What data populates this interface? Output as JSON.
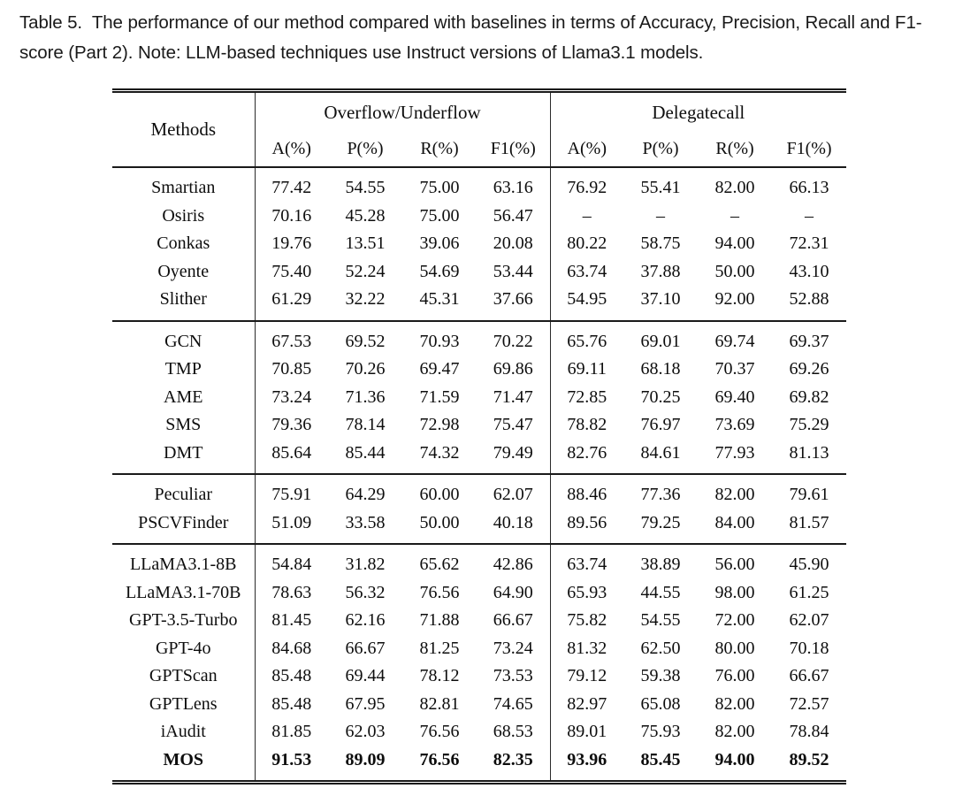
{
  "caption": "Table 5.  The performance of our method compared with baselines in terms of Accuracy, Precision, Recall and F1-score (Part 2). Note: LLM-based techniques use Instruct versions of Llama3.1 models.",
  "table": {
    "header": {
      "methods_label": "Methods",
      "group_labels": [
        "Overflow/Underflow",
        "Delegatecall"
      ],
      "metric_labels": [
        "A(%)",
        "P(%)",
        "R(%)",
        "F1(%)",
        "A(%)",
        "P(%)",
        "R(%)",
        "F1(%)"
      ]
    },
    "groups": [
      {
        "name": "static-analysis-tools",
        "rows": [
          {
            "method": "Smartian",
            "bold": false,
            "values": [
              "77.42",
              "54.55",
              "75.00",
              "63.16",
              "76.92",
              "55.41",
              "82.00",
              "66.13"
            ]
          },
          {
            "method": "Osiris",
            "bold": false,
            "values": [
              "70.16",
              "45.28",
              "75.00",
              "56.47",
              "–",
              "–",
              "–",
              "–"
            ]
          },
          {
            "method": "Conkas",
            "bold": false,
            "values": [
              "19.76",
              "13.51",
              "39.06",
              "20.08",
              "80.22",
              "58.75",
              "94.00",
              "72.31"
            ]
          },
          {
            "method": "Oyente",
            "bold": false,
            "values": [
              "75.40",
              "52.24",
              "54.69",
              "53.44",
              "63.74",
              "37.88",
              "50.00",
              "43.10"
            ]
          },
          {
            "method": "Slither",
            "bold": false,
            "values": [
              "61.29",
              "32.22",
              "45.31",
              "37.66",
              "54.95",
              "37.10",
              "92.00",
              "52.88"
            ]
          }
        ]
      },
      {
        "name": "graph-learning-methods",
        "rows": [
          {
            "method": "GCN",
            "bold": false,
            "values": [
              "67.53",
              "69.52",
              "70.93",
              "70.22",
              "65.76",
              "69.01",
              "69.74",
              "69.37"
            ]
          },
          {
            "method": "TMP",
            "bold": false,
            "values": [
              "70.85",
              "70.26",
              "69.47",
              "69.86",
              "69.11",
              "68.18",
              "70.37",
              "69.26"
            ]
          },
          {
            "method": "AME",
            "bold": false,
            "values": [
              "73.24",
              "71.36",
              "71.59",
              "71.47",
              "72.85",
              "70.25",
              "69.40",
              "69.82"
            ]
          },
          {
            "method": "SMS",
            "bold": false,
            "values": [
              "79.36",
              "78.14",
              "72.98",
              "75.47",
              "78.82",
              "76.97",
              "73.69",
              "75.29"
            ]
          },
          {
            "method": "DMT",
            "bold": false,
            "values": [
              "85.64",
              "85.44",
              "74.32",
              "79.49",
              "82.76",
              "84.61",
              "77.93",
              "81.13"
            ]
          }
        ]
      },
      {
        "name": "pretrain-methods",
        "rows": [
          {
            "method": "Peculiar",
            "bold": false,
            "values": [
              "75.91",
              "64.29",
              "60.00",
              "62.07",
              "88.46",
              "77.36",
              "82.00",
              "79.61"
            ]
          },
          {
            "method": "PSCVFinder",
            "bold": false,
            "values": [
              "51.09",
              "33.58",
              "50.00",
              "40.18",
              "89.56",
              "79.25",
              "84.00",
              "81.57"
            ]
          }
        ]
      },
      {
        "name": "llm-based-methods",
        "rows": [
          {
            "method": "LLaMA3.1-8B",
            "bold": false,
            "values": [
              "54.84",
              "31.82",
              "65.62",
              "42.86",
              "63.74",
              "38.89",
              "56.00",
              "45.90"
            ]
          },
          {
            "method": "LLaMA3.1-70B",
            "bold": false,
            "values": [
              "78.63",
              "56.32",
              "76.56",
              "64.90",
              "65.93",
              "44.55",
              "98.00",
              "61.25"
            ]
          },
          {
            "method": "GPT-3.5-Turbo",
            "bold": false,
            "values": [
              "81.45",
              "62.16",
              "71.88",
              "66.67",
              "75.82",
              "54.55",
              "72.00",
              "62.07"
            ]
          },
          {
            "method": "GPT-4o",
            "bold": false,
            "values": [
              "84.68",
              "66.67",
              "81.25",
              "73.24",
              "81.32",
              "62.50",
              "80.00",
              "70.18"
            ]
          },
          {
            "method": "GPTScan",
            "bold": false,
            "values": [
              "85.48",
              "69.44",
              "78.12",
              "73.53",
              "79.12",
              "59.38",
              "76.00",
              "66.67"
            ]
          },
          {
            "method": "GPTLens",
            "bold": false,
            "values": [
              "85.48",
              "67.95",
              "82.81",
              "74.65",
              "82.97",
              "65.08",
              "82.00",
              "72.57"
            ]
          },
          {
            "method": "iAudit",
            "bold": false,
            "values": [
              "81.85",
              "62.03",
              "76.56",
              "68.53",
              "89.01",
              "75.93",
              "82.00",
              "78.84"
            ]
          },
          {
            "method": "MOS",
            "bold": true,
            "values": [
              "91.53",
              "89.09",
              "76.56",
              "82.35",
              "93.96",
              "85.45",
              "94.00",
              "89.52"
            ]
          }
        ]
      }
    ]
  }
}
